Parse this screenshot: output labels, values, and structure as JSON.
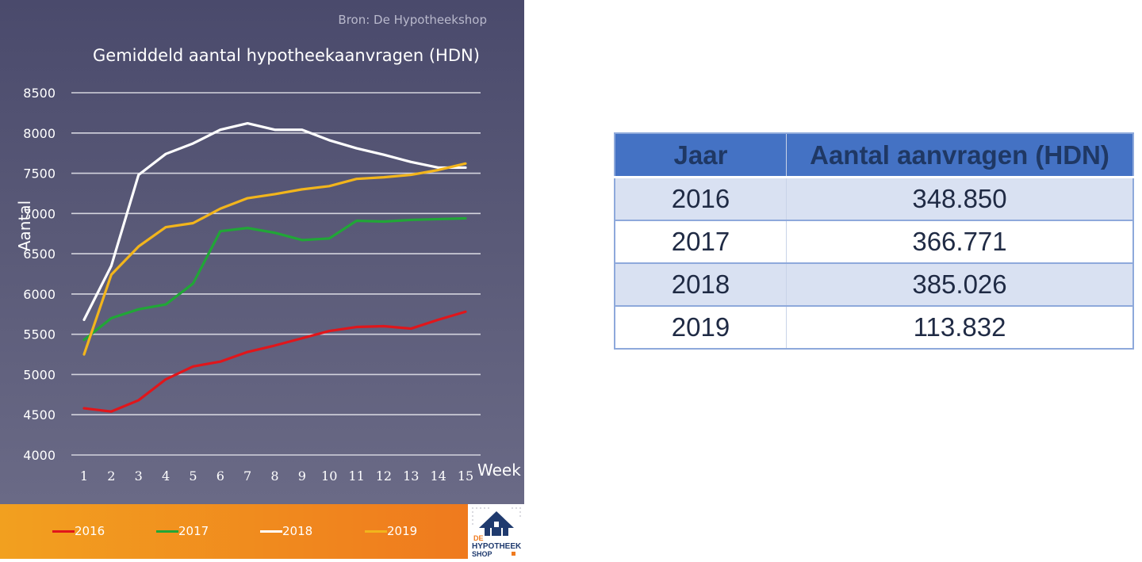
{
  "source": "Bron: De Hypotheekshop",
  "chart_data": {
    "type": "line",
    "title": "Gemiddeld aantal hypotheekaanvragen (HDN)",
    "xlabel": "Week",
    "ylabel": "Aantal",
    "x": [
      1,
      2,
      3,
      4,
      5,
      6,
      7,
      8,
      9,
      10,
      11,
      12,
      13,
      14,
      15
    ],
    "ylim": [
      4000,
      8500
    ],
    "yticks": [
      4000,
      4500,
      5000,
      5500,
      6000,
      6500,
      7000,
      7500,
      8000,
      8500
    ],
    "grid": true,
    "legend_position": "bottom",
    "series": [
      {
        "name": "2016",
        "color": "#e0161b",
        "values": [
          4580,
          4540,
          4680,
          4940,
          5100,
          5160,
          5280,
          5360,
          5450,
          5540,
          5590,
          5600,
          5570,
          5680,
          5780
        ]
      },
      {
        "name": "2017",
        "color": "#21a637",
        "values": [
          5430,
          5700,
          5810,
          5870,
          6130,
          6780,
          6820,
          6760,
          6670,
          6690,
          6910,
          6900,
          6920,
          6930,
          6940
        ]
      },
      {
        "name": "2018",
        "color": "#ffffff",
        "values": [
          5680,
          6350,
          7480,
          7740,
          7870,
          8040,
          8120,
          8040,
          8040,
          7910,
          7810,
          7730,
          7640,
          7570,
          7570
        ]
      },
      {
        "name": "2019",
        "color": "#f2b51c",
        "values": [
          5250,
          6240,
          6590,
          6830,
          6880,
          7060,
          7190,
          7240,
          7300,
          7340,
          7430,
          7450,
          7480,
          7540,
          7620
        ]
      }
    ]
  },
  "logo": {
    "line1": "DE",
    "line2": "HYPOTHEEK",
    "line3": "SHOP"
  },
  "table": {
    "headers": [
      "Jaar",
      "Aantal aanvragen (HDN)"
    ],
    "rows": [
      [
        "2016",
        "348.850"
      ],
      [
        "2017",
        "366.771"
      ],
      [
        "2018",
        "385.026"
      ],
      [
        "2019",
        "113.832"
      ]
    ]
  }
}
